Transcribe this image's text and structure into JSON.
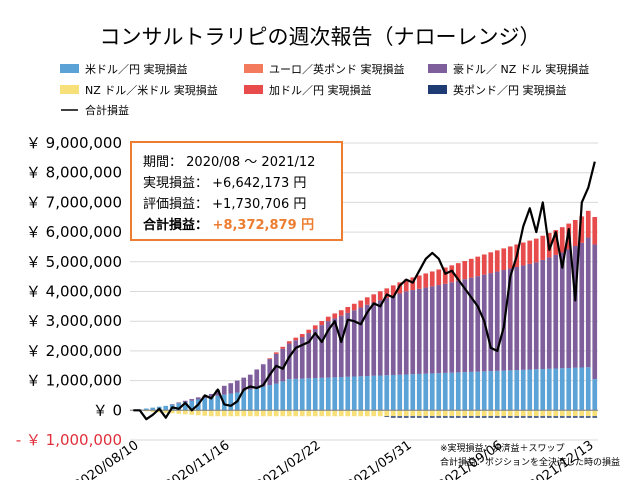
{
  "title": "コンサルトラリピの週次報告（ナローレンジ）",
  "colors": {
    "usdjpy": "#5ba3d6",
    "eurgbp": "#f47a5d",
    "audnzd": "#7e5f9c",
    "nzdusd": "#f7e07a",
    "cadjpy": "#e84b4b",
    "gbpusd": "#1f3b73",
    "total": "#000000",
    "box_border": "#ed7d31",
    "negative_label": "#e0303b"
  },
  "info_box": {
    "period_label": "期間：",
    "period_value": "2020/08 ～ 2021/12",
    "realized_label": "実現損益：",
    "realized_value": "+6,642,173 円",
    "unrealized_label": "評価損益：",
    "unrealized_value": "+1,730,706 円",
    "total_label": "合計損益：",
    "total_value": "+8,372,879 円"
  },
  "notes": {
    "line1": "※実現損益：決済益＋スワップ",
    "line2": "合計損益：ポジションを全決済した時の損益"
  },
  "chart_data": {
    "type": "bar",
    "stacked": true,
    "title": "コンサルトラリピの週次報告（ナローレンジ）",
    "ylim": [
      -1000000,
      9000000
    ],
    "yticks": [
      {
        "value": 9000000,
        "label": "￥ 9,000,000"
      },
      {
        "value": 8000000,
        "label": "￥ 8,000,000"
      },
      {
        "value": 7000000,
        "label": "￥ 7,000,000"
      },
      {
        "value": 6000000,
        "label": "￥ 6,000,000"
      },
      {
        "value": 5000000,
        "label": "￥ 5,000,000"
      },
      {
        "value": 4000000,
        "label": "￥ 4,000,000"
      },
      {
        "value": 3000000,
        "label": "￥ 3,000,000"
      },
      {
        "value": 2000000,
        "label": "￥ 2,000,000"
      },
      {
        "value": 1000000,
        "label": "￥ 1,000,000"
      },
      {
        "value": 0,
        "label": "￥ 0"
      },
      {
        "value": -1000000,
        "label": "- ￥ 1,000,000"
      }
    ],
    "xtick_labels": [
      "2020/08/10",
      "2020/11/16",
      "2021/02/22",
      "2021/05/31",
      "2021/09/06",
      "2021/12/13"
    ],
    "xtick_weeks": [
      0,
      14,
      28,
      42,
      56,
      70
    ],
    "n_weeks": 72,
    "legend": [
      "米ドル／円 実現損益",
      "ユーロ／英ポンド 実現損益",
      "豪ドル／ NZ ドル 実現損益",
      "NZ ドル／米ドル 実現損益",
      "加ドル／円 実現損益",
      "英ポンド／円 実現損益",
      "合計損益"
    ],
    "series": [
      {
        "name": "米ドル／円 実現損益",
        "key": "usdjpy",
        "anchors": [
          [
            0,
            0
          ],
          [
            5,
            150000
          ],
          [
            12,
            450000
          ],
          [
            16,
            600000
          ],
          [
            22,
            900000
          ],
          [
            24,
            1050000
          ],
          [
            70,
            1450000
          ],
          [
            71,
            1050000
          ],
          [
            72,
            1050000
          ]
        ]
      },
      {
        "name": "ユーロ／英ポンド 実現損益",
        "key": "eurgbp",
        "anchors": [
          [
            0,
            0
          ],
          [
            72,
            0
          ]
        ]
      },
      {
        "name": "豪ドル／ NZ ドル 実現損益",
        "key": "audnzd",
        "anchors": [
          [
            0,
            0
          ],
          [
            5,
            0
          ],
          [
            12,
            100000
          ],
          [
            14,
            300000
          ],
          [
            18,
            500000
          ],
          [
            22,
            1000000
          ],
          [
            26,
            1400000
          ],
          [
            30,
            1900000
          ],
          [
            36,
            2400000
          ],
          [
            42,
            2800000
          ],
          [
            48,
            3000000
          ],
          [
            55,
            3300000
          ],
          [
            62,
            3600000
          ],
          [
            66,
            3900000
          ],
          [
            69,
            4200000
          ],
          [
            72,
            4700000
          ]
        ]
      },
      {
        "name": "NZ ドル／米ドル 実現損益",
        "key": "nzdusd",
        "anchors": [
          [
            0,
            0
          ],
          [
            3,
            -50000
          ],
          [
            6,
            -100000
          ],
          [
            9,
            -150000
          ],
          [
            12,
            -200000
          ],
          [
            14,
            -200000
          ],
          [
            72,
            -200000
          ]
        ]
      },
      {
        "name": "加ドル／円 実現損益",
        "key": "cadjpy",
        "anchors": [
          [
            0,
            0
          ],
          [
            20,
            0
          ],
          [
            22,
            50000
          ],
          [
            30,
            150000
          ],
          [
            36,
            250000
          ],
          [
            42,
            400000
          ],
          [
            48,
            550000
          ],
          [
            55,
            700000
          ],
          [
            62,
            800000
          ],
          [
            66,
            850000
          ],
          [
            70,
            900000
          ],
          [
            72,
            950000
          ]
        ]
      },
      {
        "name": "英ポンド／円 実現損益",
        "key": "gbpusd",
        "anchors": [
          [
            0,
            0
          ],
          [
            38,
            0
          ],
          [
            40,
            -50000
          ],
          [
            72,
            -50000
          ]
        ]
      },
      {
        "name": "合計損益",
        "key": "total",
        "values": [
          0,
          0,
          -300000,
          -150000,
          50000,
          -250000,
          100000,
          50000,
          250000,
          0,
          200000,
          500000,
          400000,
          700000,
          200000,
          150000,
          300000,
          700000,
          800000,
          750000,
          850000,
          1200000,
          1500000,
          1400000,
          1800000,
          2100000,
          2200000,
          2300000,
          2600000,
          2300000,
          2700000,
          3000000,
          2300000,
          3050000,
          3000000,
          2900000,
          3300000,
          3600000,
          3500000,
          3900000,
          3800000,
          4200000,
          4400000,
          4300000,
          4700000,
          5100000,
          5300000,
          5100000,
          4600000,
          4700000,
          4400000,
          4100000,
          3800000,
          3500000,
          3000000,
          2100000,
          2000000,
          2800000,
          4500000,
          5200000,
          6200000,
          6800000,
          6000000,
          7000000,
          5400000,
          6000000,
          4800000,
          6100000,
          3700000,
          7000000,
          7500000,
          8372879
        ]
      }
    ]
  }
}
